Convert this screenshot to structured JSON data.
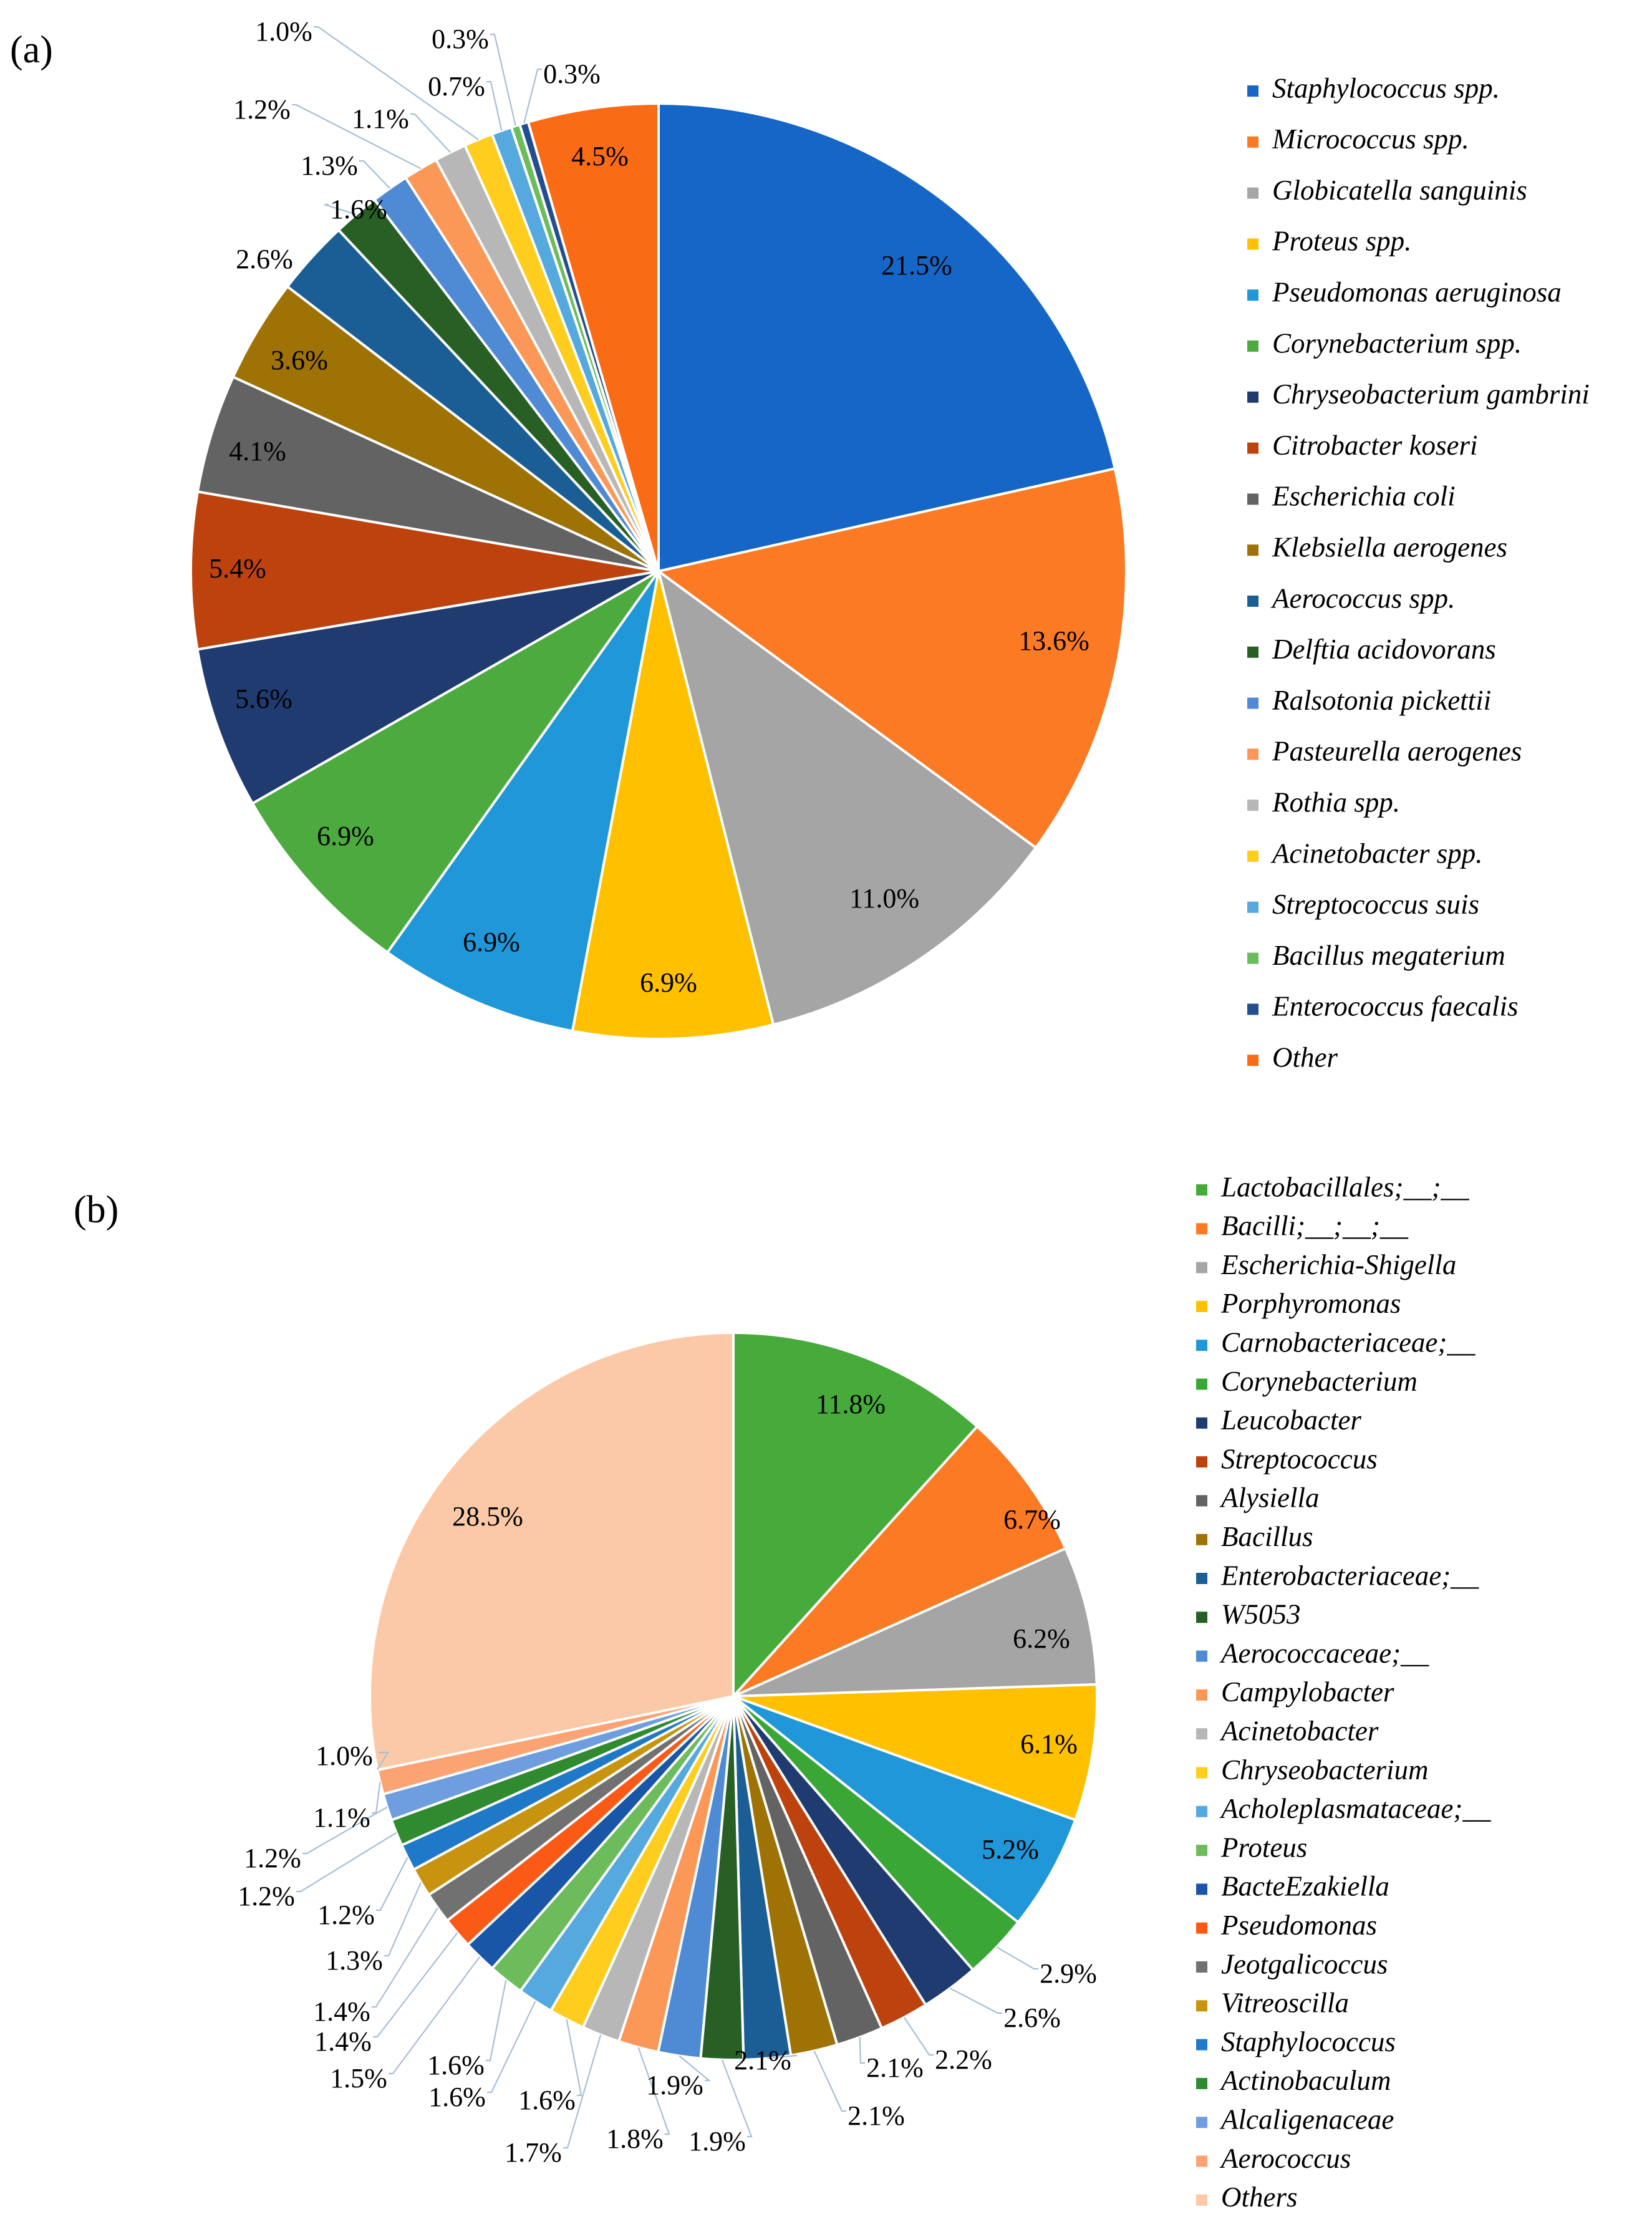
{
  "chart_data": [
    {
      "type": "pie",
      "panel_label": "(a)",
      "start": "12 o'clock",
      "direction": "clockwise",
      "legend_position": "right",
      "labels": [
        "Staphylococcus spp.",
        "Micrococcus spp.",
        "Globicatella sanguinis",
        "Proteus spp.",
        "Pseudomonas aeruginosa",
        "Corynebacterium spp.",
        "Chryseobacterium gambrini",
        "Citrobacter koseri",
        "Escherichia coli",
        "Klebsiella aerogenes",
        "Aerococcus spp.",
        "Delftia acidovorans",
        "Ralsotonia pickettii",
        "Pasteurella aerogenes",
        "Rothia spp.",
        "Acinetobacter spp.",
        "Streptococcus suis",
        "Bacillus megaterium",
        "Enterococcus faecalis",
        "Other"
      ],
      "values": [
        21.5,
        13.6,
        11.0,
        6.9,
        6.9,
        6.9,
        5.6,
        5.4,
        4.1,
        3.6,
        2.6,
        1.6,
        1.3,
        1.2,
        1.1,
        1.0,
        0.7,
        0.3,
        0.3,
        4.5
      ],
      "data_labels": [
        "21.5%",
        "13.6%",
        "11.0%",
        "6.9%",
        "6.9%",
        "6.9%",
        "5.6%",
        "5.4%",
        "4.1%",
        "3.6%",
        "2.6%",
        "1.6%",
        "1.3%",
        "1.2%",
        "1.1%",
        "1.0%",
        "0.7%",
        "0.3%",
        "0.3%",
        "4.5%"
      ],
      "colors": [
        "#1566c6",
        "#fb7a23",
        "#a5a5a5",
        "#ffc000",
        "#1f97d8",
        "#4daa3f",
        "#1f3b70",
        "#bd420e",
        "#636363",
        "#9e7205",
        "#1a5e95",
        "#275f24",
        "#4f8ad4",
        "#fb9757",
        "#b7b7b7",
        "#ffcd1d",
        "#55a9de",
        "#6cbc5c",
        "#234e90",
        "#fa6b16"
      ]
    },
    {
      "type": "pie",
      "panel_label": "(b)",
      "start": "12 o'clock",
      "direction": "clockwise",
      "legend_position": "right",
      "labels": [
        "Lactobacillales;__;__",
        "Bacilli;__;__;__",
        "Escherichia-Shigella",
        "Porphyromonas",
        "Carnobacteriaceae;__",
        "Corynebacterium",
        "Leucobacter",
        "Streptococcus",
        "Alysiella",
        "Bacillus",
        "Enterobacteriaceae;__",
        "W5053",
        "Aerococcaceae;__",
        "Campylobacter",
        "Acinetobacter",
        "Chryseobacterium",
        "Acholeplasmataceae;__",
        "Proteus",
        "BacteEzakiella",
        "Pseudomonas",
        "Jeotgalicoccus",
        "Vitreoscilla",
        "Staphylococcus",
        "Actinobaculum",
        "Alcaligenaceae",
        "Aerococcus",
        "Others"
      ],
      "values": [
        11.8,
        6.7,
        6.2,
        6.1,
        5.2,
        2.9,
        2.6,
        2.2,
        2.1,
        2.1,
        2.1,
        1.9,
        1.9,
        1.8,
        1.7,
        1.6,
        1.6,
        1.6,
        1.5,
        1.4,
        1.4,
        1.3,
        1.2,
        1.2,
        1.2,
        1.1,
        28.5
      ],
      "data_labels": [
        "11.8%",
        "6.7%",
        "6.2%",
        "6.1%",
        "5.2%",
        "2.9%",
        "2.6%",
        "2.2%",
        "2.1%",
        "2.1%",
        "2.1%",
        "1.9%",
        "1.9%",
        "1.8%",
        "1.7%",
        "1.6%",
        "1.6%",
        "1.6%",
        "1.5%",
        "1.4%",
        "1.4%",
        "1.3%",
        "1.2%",
        "1.2%",
        "1.2%",
        "1.1%",
        "28.5%"
      ],
      "extra_labels": [
        "1.0%"
      ],
      "colors": [
        "#46ab3b",
        "#fb7a23",
        "#a5a5a5",
        "#ffc000",
        "#1f97d8",
        "#3aa636",
        "#1f3b70",
        "#bd420e",
        "#636363",
        "#9e7205",
        "#1a5e95",
        "#275f24",
        "#4f8ad4",
        "#fb9757",
        "#b7b7b7",
        "#ffcd1d",
        "#55a9de",
        "#6cbc5c",
        "#1a56a8",
        "#fa5a16",
        "#717171",
        "#c89410",
        "#1f78c8",
        "#2f8a30",
        "#6f9ee0",
        "#fba373",
        "#fbc9a7"
      ]
    }
  ]
}
